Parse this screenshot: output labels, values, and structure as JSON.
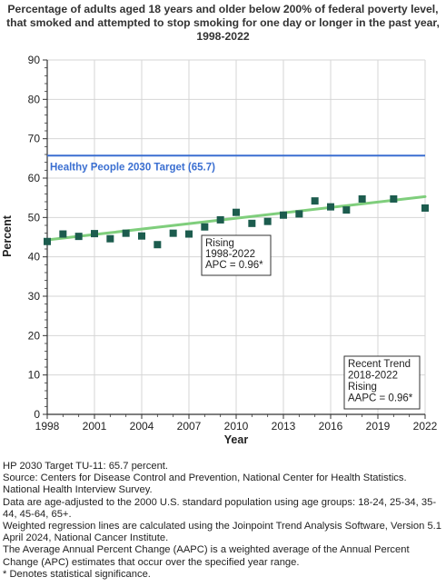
{
  "title_lines": [
    "Percentage of adults aged 18 years and older below 200% of federal poverty level,",
    "that smoked and attempted to stop smoking for one day or longer in the past year,",
    "1998-2022"
  ],
  "chart_data": {
    "type": "scatter",
    "xlabel": "Year",
    "ylabel": "Percent",
    "xlim": [
      1998,
      2022
    ],
    "ylim": [
      0,
      90
    ],
    "x_ticks": [
      "1998",
      "2001",
      "2004",
      "2007",
      "2010",
      "2013",
      "2016",
      "2019",
      "2022"
    ],
    "y_ticks": [
      "0",
      "10",
      "20",
      "30",
      "40",
      "50",
      "60",
      "70",
      "80",
      "90"
    ],
    "grid": true,
    "points": [
      {
        "x": 1998,
        "y": 43.9
      },
      {
        "x": 1999,
        "y": 45.8
      },
      {
        "x": 2000,
        "y": 45.2
      },
      {
        "x": 2001,
        "y": 45.9
      },
      {
        "x": 2002,
        "y": 44.6
      },
      {
        "x": 2003,
        "y": 46.0
      },
      {
        "x": 2004,
        "y": 45.3
      },
      {
        "x": 2005,
        "y": 43.1
      },
      {
        "x": 2006,
        "y": 46.0
      },
      {
        "x": 2007,
        "y": 45.8
      },
      {
        "x": 2008,
        "y": 47.6
      },
      {
        "x": 2009,
        "y": 49.4
      },
      {
        "x": 2010,
        "y": 51.3
      },
      {
        "x": 2011,
        "y": 48.5
      },
      {
        "x": 2012,
        "y": 49.0
      },
      {
        "x": 2013,
        "y": 50.6
      },
      {
        "x": 2014,
        "y": 50.9
      },
      {
        "x": 2015,
        "y": 54.2
      },
      {
        "x": 2016,
        "y": 52.7
      },
      {
        "x": 2017,
        "y": 51.9
      },
      {
        "x": 2018,
        "y": 54.7
      },
      {
        "x": 2020,
        "y": 54.7
      },
      {
        "x": 2022,
        "y": 52.4
      }
    ],
    "trend_line": {
      "x": [
        1998,
        2022
      ],
      "y": [
        44.3,
        55.3
      ]
    },
    "target": {
      "value": 65.7,
      "label": "Healthy People 2030 Target (65.7)"
    },
    "annotations": [
      {
        "lines": [
          "Rising",
          "1998-2022",
          "APC = 0.96*"
        ]
      },
      {
        "lines": [
          "Recent Trend",
          "2018-2022",
          "Rising",
          "AAPC = 0.96*"
        ]
      }
    ],
    "colors": {
      "marker": "#1c5c4e",
      "trend": "#7fce7c",
      "target": "#3b6fd1",
      "grid": "#d6d6d6"
    }
  },
  "notes": [
    "HP 2030 Target TU-11: 65.7 percent.",
    "Source: Centers for Disease Control and Prevention, National Center for Health Statistics. National Health Interview Survey.",
    "Data are age-adjusted to the 2000 U.S. standard population using age groups: 18-24, 25-34, 35-44, 45-64, 65+.",
    "Weighted regression lines are calculated using the Joinpoint Trend Analysis Software, Version 5.1 April 2024, National Cancer Institute.",
    "The Average Annual Percent Change (AAPC) is a weighted average of the Annual Percent Change (APC) estimates that occur over the specified year range.",
    "* Denotes statistical significance."
  ]
}
